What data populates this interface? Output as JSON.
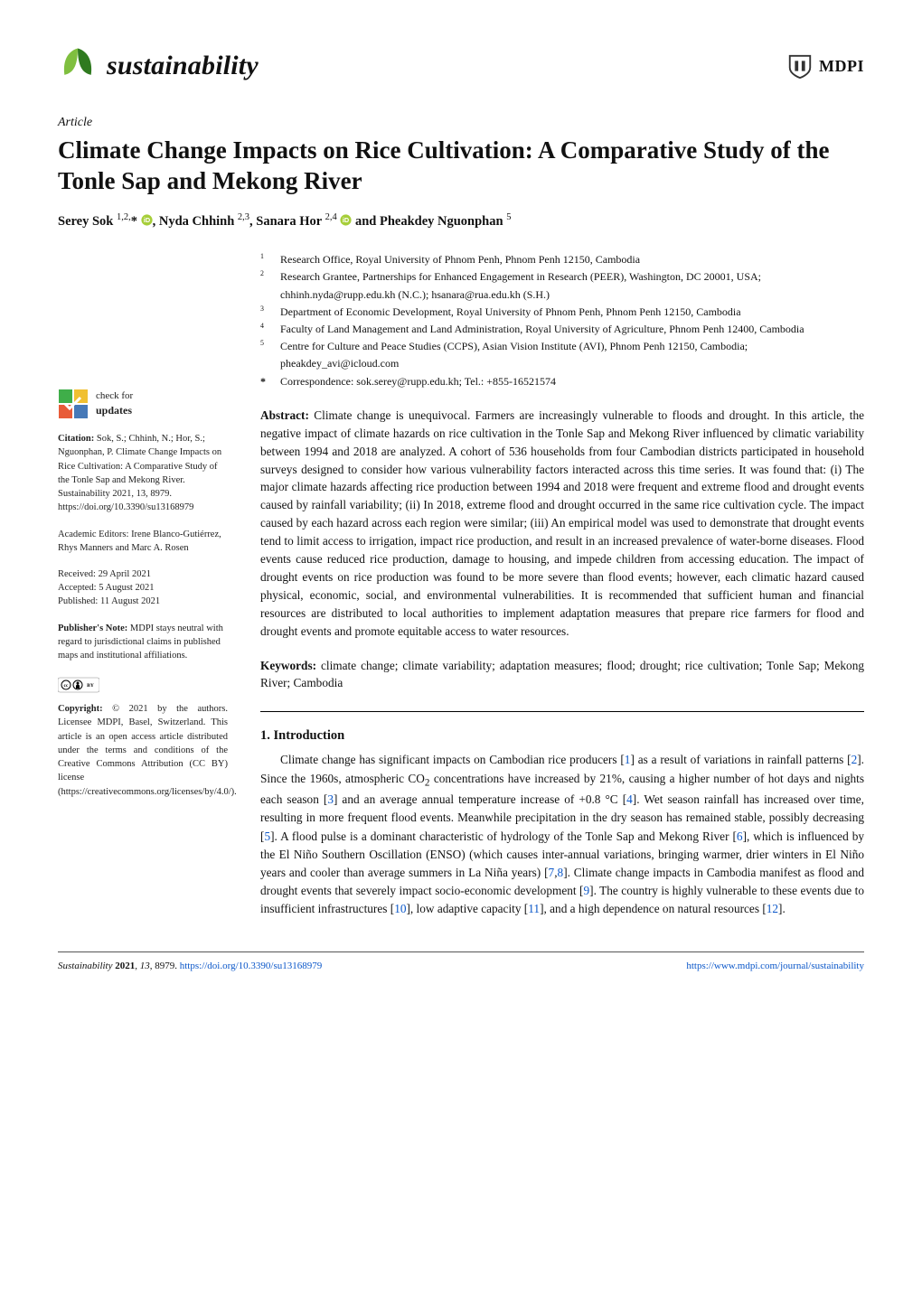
{
  "header": {
    "journal_name": "sustainability",
    "publisher": "MDPI",
    "leaf_colors": {
      "top": "#7fbf3f",
      "bottom": "#2f7a1f"
    },
    "mdpi_colors": {
      "outline": "#333333",
      "text": "#333333"
    }
  },
  "article": {
    "type": "Article",
    "title": "Climate Change Impacts on Rice Cultivation: A Comparative Study of the Tonle Sap and Mekong River",
    "authors_html": "Serey Sok <sup>1,2,</sup>* , Nyda Chhinh <sup>2,3</sup>, Sanara Hor <sup>2,4</sup>  and Pheakdey Nguonphan <sup>5</sup>",
    "orcid_positions": [
      1,
      3
    ],
    "affiliations": [
      {
        "n": "1",
        "t": "Research Office, Royal University of Phnom Penh, Phnom Penh 12150, Cambodia"
      },
      {
        "n": "2",
        "t": "Research Grantee, Partnerships for Enhanced Engagement in Research (PEER), Washington, DC 20001, USA; chhinh.nyda@rupp.edu.kh (N.C.); hsanara@rua.edu.kh (S.H.)"
      },
      {
        "n": "3",
        "t": "Department of Economic Development, Royal University of Phnom Penh, Phnom Penh 12150, Cambodia"
      },
      {
        "n": "4",
        "t": "Faculty of Land Management and Land Administration, Royal University of Agriculture, Phnom Penh 12400, Cambodia"
      },
      {
        "n": "5",
        "t": "Centre for Culture and Peace Studies (CCPS), Asian Vision Institute (AVI), Phnom Penh 12150, Cambodia; pheakdey_avi@icloud.com"
      }
    ],
    "correspondence": {
      "star": "*",
      "t": "Correspondence: sok.serey@rupp.edu.kh; Tel.: +855-16521574"
    },
    "abstract_label": "Abstract:",
    "abstract": "Climate change is unequivocal. Farmers are increasingly vulnerable to floods and drought. In this article, the negative impact of climate hazards on rice cultivation in the Tonle Sap and Mekong River influenced by climatic variability between 1994 and 2018 are analyzed. A cohort of 536 households from four Cambodian districts participated in household surveys designed to consider how various vulnerability factors interacted across this time series. It was found that: (i) The major climate hazards affecting rice production between 1994 and 2018 were frequent and extreme flood and drought events caused by rainfall variability; (ii) In 2018, extreme flood and drought occurred in the same rice cultivation cycle. The impact caused by each hazard across each region were similar; (iii) An empirical model was used to demonstrate that drought events tend to limit access to irrigation, impact rice production, and result in an increased prevalence of water-borne diseases. Flood events cause reduced rice production, damage to housing, and impede children from accessing education. The impact of drought events on rice production was found to be more severe than flood events; however, each climatic hazard caused physical, economic, social, and environmental vulnerabilities. It is recommended that sufficient human and financial resources are distributed to local authorities to implement adaptation measures that prepare rice farmers for flood and drought events and promote equitable access to water resources.",
    "keywords_label": "Keywords:",
    "keywords": "climate change; climate variability; adaptation measures; flood; drought; rice cultivation; Tonle Sap; Mekong River; Cambodia"
  },
  "sidebar": {
    "check_updates": "check for updates",
    "citation_label": "Citation:",
    "citation": " Sok, S.; Chhinh, N.; Hor, S.; Nguonphan, P. Climate Change Impacts on Rice Cultivation: A Comparative Study of the Tonle Sap and Mekong River. Sustainability 2021, 13, 8979. https://doi.org/10.3390/su13168979",
    "academic_editors_label": "Academic Editors: ",
    "academic_editors": "Irene Blanco-Gutiérrez, Rhys Manners and Marc A. Rosen",
    "received_label": "Received: ",
    "received": "29 April 2021",
    "accepted_label": "Accepted: ",
    "accepted": "5 August 2021",
    "published_label": "Published: ",
    "published": "11 August 2021",
    "pubnote_label": "Publisher's Note:",
    "pubnote": " MDPI stays neutral with regard to jurisdictional claims in published maps and institutional affiliations.",
    "copyright_label": "Copyright:",
    "copyright": " © 2021 by the authors. Licensee MDPI, Basel, Switzerland. This article is an open access article distributed under the terms and conditions of the Creative Commons Attribution (CC BY) license (https://creativecommons.org/licenses/by/4.0/)."
  },
  "intro": {
    "heading": "1. Introduction",
    "body_parts": [
      "Climate change has significant impacts on Cambodian rice producers [",
      "1",
      "] as a result of variations in rainfall patterns [",
      "2",
      "]. Since the 1960s, atmospheric CO",
      "2",
      " concentrations have increased by 21%, causing a higher number of hot days and nights each season [",
      "3",
      "] and an average annual temperature increase of +0.8 °C [",
      "4",
      "]. Wet season rainfall has increased over time, resulting in more frequent flood events. Meanwhile precipitation in the dry season has remained stable, possibly decreasing [",
      "5",
      "]. A flood pulse is a dominant characteristic of hydrology of the Tonle Sap and Mekong River [",
      "6",
      "], which is influenced by the El Niño Southern Oscillation (ENSO) (which causes inter-annual variations, bringing warmer, drier winters in El Niño years and cooler than average summers in La Niña years) [",
      "7",
      ",",
      "8",
      "]. Climate change impacts in Cambodia manifest as flood and drought events that severely impact socio-economic development [",
      "9",
      "]. The country is highly vulnerable to these events due to insufficient infrastructures [",
      "10",
      "], low adaptive capacity [",
      "11",
      "], and a high dependence on natural resources [",
      "12",
      "]."
    ]
  },
  "footer": {
    "left": "Sustainability 2021, 13, 8979. https://doi.org/10.3390/su13168979",
    "right": "https://www.mdpi.com/journal/sustainability"
  },
  "colors": {
    "link": "#0b57c9",
    "orcid": "#a6ce39",
    "check_tile1": "#3fae49",
    "check_tile2": "#f0c032",
    "check_tile3": "#e85b38",
    "check_tile4": "#4679b8"
  }
}
